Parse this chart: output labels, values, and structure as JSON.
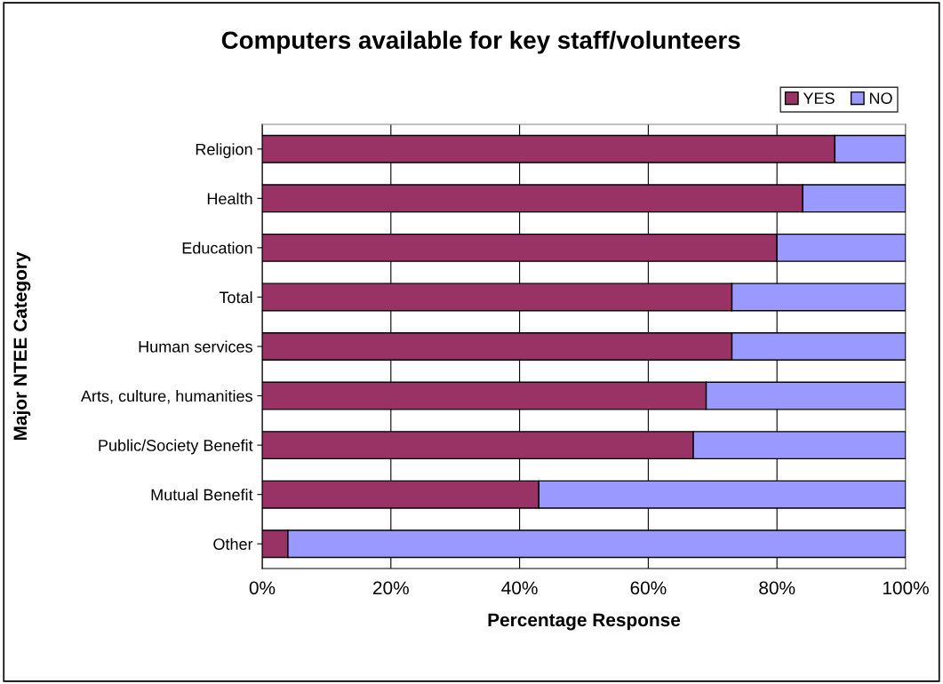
{
  "chart_data": {
    "type": "bar",
    "orientation": "horizontal",
    "stacked": true,
    "title": "Computers available for key staff/volunteers",
    "xlabel": "Percentage Response",
    "ylabel": "Major NTEE Category",
    "categories": [
      "Religion",
      "Health",
      "Education",
      "Total",
      "Human services",
      "Arts, culture, humanities",
      "Public/Society Benefit",
      "Mutual Benefit",
      "Other"
    ],
    "series": [
      {
        "name": "YES",
        "color": "#993366",
        "values": [
          89,
          84,
          80,
          73,
          73,
          69,
          67,
          43,
          4
        ]
      },
      {
        "name": "NO",
        "color": "#9999ff",
        "values": [
          11,
          16,
          20,
          27,
          27,
          31,
          33,
          57,
          96
        ]
      }
    ],
    "xlim": [
      0,
      100
    ],
    "xticks": [
      {
        "value": 0,
        "label": "0%"
      },
      {
        "value": 20,
        "label": "20%"
      },
      {
        "value": 40,
        "label": "40%"
      },
      {
        "value": 60,
        "label": "60%"
      },
      {
        "value": 80,
        "label": "80%"
      },
      {
        "value": 100,
        "label": "100%"
      }
    ],
    "grid": "x",
    "legend": "top right"
  }
}
